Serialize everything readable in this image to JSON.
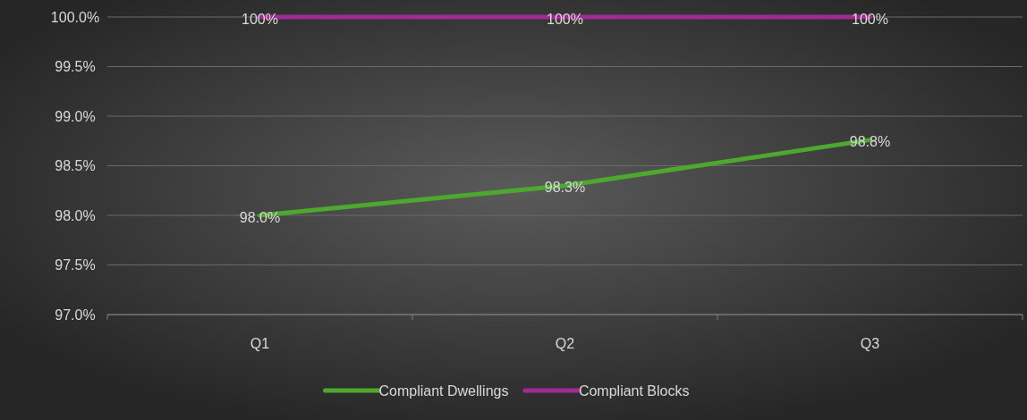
{
  "chart_data": {
    "type": "line",
    "categories": [
      "Q1",
      "Q2",
      "Q3"
    ],
    "series": [
      {
        "name": "Compliant Dwellings",
        "color": "#4ea72e",
        "values": [
          98.0,
          98.3,
          98.76
        ],
        "value_labels": [
          "98.0%",
          "98.3%",
          "98.8%"
        ]
      },
      {
        "name": "Compliant Blocks",
        "color": "#a02b93",
        "values": [
          100,
          100,
          100
        ],
        "value_labels": [
          "100%",
          "100%",
          "100%"
        ]
      }
    ],
    "ylim": [
      97,
      100
    ],
    "yticks": [
      {
        "value": 97,
        "label": "97.0%"
      },
      {
        "value": 97.5,
        "label": "97.5%"
      },
      {
        "value": 98,
        "label": "98.0%"
      },
      {
        "value": 98.5,
        "label": "98.5%"
      },
      {
        "value": 99,
        "label": "99.0%"
      },
      {
        "value": 99.5,
        "label": "99.5%"
      },
      {
        "value": 100,
        "label": "100.0%"
      }
    ],
    "grid": "y",
    "legend": "bottom",
    "marker": "none",
    "line_style": "solid"
  }
}
